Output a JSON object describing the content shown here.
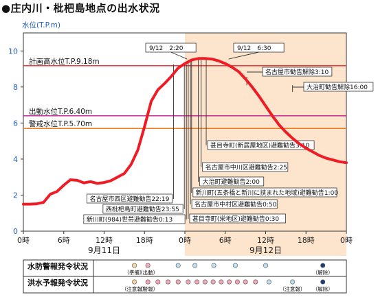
{
  "page": {
    "title": "●庄内川・枇杷島地点の出水状況"
  },
  "chart_data": {
    "type": "line",
    "ylabel": "水位(T.P.m)",
    "ylim": [
      0,
      11
    ],
    "yticks": [
      0,
      2,
      4,
      6,
      8,
      10
    ],
    "xlim": [
      0,
      48
    ],
    "xtick_labels": [
      {
        "x": 0,
        "label": "0時"
      },
      {
        "x": 6,
        "label": "6時"
      },
      {
        "x": 12,
        "label": "12時"
      },
      {
        "x": 18,
        "label": "18時"
      },
      {
        "x": 24,
        "label": "0時"
      },
      {
        "x": 30,
        "label": "6時"
      },
      {
        "x": 36,
        "label": "12時"
      },
      {
        "x": 42,
        "label": "18時"
      },
      {
        "x": 48,
        "label": "0時"
      }
    ],
    "day_labels": [
      {
        "x": 12,
        "label": "9月11日"
      },
      {
        "x": 36,
        "label": "9月12日"
      }
    ],
    "highlight_range": [
      24,
      48
    ],
    "series": [
      {
        "color": "#ee1c25",
        "points": [
          [
            0,
            1.5
          ],
          [
            1,
            1.5
          ],
          [
            2,
            1.52
          ],
          [
            3,
            1.6
          ],
          [
            4,
            2.05
          ],
          [
            5,
            2.2
          ],
          [
            6,
            2.55
          ],
          [
            7,
            2.85
          ],
          [
            8,
            2.82
          ],
          [
            9,
            2.68
          ],
          [
            10,
            2.75
          ],
          [
            11,
            2.65
          ],
          [
            12,
            2.7
          ],
          [
            13,
            2.8
          ],
          [
            14,
            3.0
          ],
          [
            15,
            3.2
          ],
          [
            16,
            3.7
          ],
          [
            17,
            4.5
          ],
          [
            18,
            5.8
          ],
          [
            19,
            7.2
          ],
          [
            20,
            7.85
          ],
          [
            21,
            8.2
          ],
          [
            22,
            8.6
          ],
          [
            23,
            9.05
          ],
          [
            24,
            9.3
          ],
          [
            25,
            9.5
          ],
          [
            26,
            9.58
          ],
          [
            27,
            9.58
          ],
          [
            28,
            9.55
          ],
          [
            29,
            9.45
          ],
          [
            30,
            9.3
          ],
          [
            31,
            9.1
          ],
          [
            32,
            8.85
          ],
          [
            33,
            8.45
          ],
          [
            34,
            8.0
          ],
          [
            35,
            7.5
          ],
          [
            36,
            6.95
          ],
          [
            37,
            6.4
          ],
          [
            38,
            5.9
          ],
          [
            39,
            5.5
          ],
          [
            40,
            5.15
          ],
          [
            41,
            4.85
          ],
          [
            42,
            4.6
          ],
          [
            43,
            4.4
          ],
          [
            44,
            4.2
          ],
          [
            45,
            4.05
          ],
          [
            46,
            3.95
          ],
          [
            47,
            3.85
          ],
          [
            48,
            3.8
          ]
        ]
      }
    ],
    "reference_lines": [
      {
        "value": 9.18,
        "label": "計画高水位T.P.9.18m",
        "color": "#e8232a"
      },
      {
        "value": 6.4,
        "label": "出動水位T.P.6.40m",
        "color": "#c8178c"
      },
      {
        "value": 5.7,
        "label": "警戒水位T.P.5.70m",
        "color": "#f07b18"
      }
    ],
    "time_markers": [
      {
        "x": 24.33,
        "label": "9/12　2:20"
      },
      {
        "x": 30.5,
        "label": "9/12　6:30"
      }
    ],
    "annotations_right": [
      {
        "x": 33.2,
        "label": "名古屋市勧告解除3:10"
      },
      {
        "x": 40.0,
        "label": "大治町勧告解除16:00"
      }
    ],
    "annotations_mid": [
      {
        "x": 27.17,
        "label": "甚目寺町(新居屋地区)避難勧告3:10"
      },
      {
        "x": 26.42,
        "label": "名古屋市中川区避難勧告2:25"
      },
      {
        "x": 26.0,
        "label": "大治町避難勧告2:00"
      },
      {
        "x": 25.0,
        "label": "新川町(五条橋と新川に挟まれた地域)避難勧告1:00"
      },
      {
        "x": 24.83,
        "label": "名古屋市中村区避難勧告0:50"
      },
      {
        "x": 24.5,
        "label": "甚目寺町(栄地区)避難勧告0:30"
      }
    ],
    "annotations_left": [
      {
        "x": 22.32,
        "label": "名古屋市西区避難勧告22:19"
      },
      {
        "x": 23.92,
        "label": "西枇杷島町避難勧告23:55"
      },
      {
        "x": 24.22,
        "label": "新川町(984)世帯避難勧告0:13"
      }
    ]
  },
  "status_rows": [
    {
      "label": "水防警報発令状況",
      "dots": [
        {
          "x": 16.5,
          "color": "#f6d7a0"
        },
        {
          "x": 18.5,
          "color": "#f1a8b8"
        },
        {
          "x": 23,
          "color": "#bfe0f3"
        },
        {
          "x": 25.5,
          "color": "#bfe0f3"
        },
        {
          "x": 28.3,
          "color": "#bfe0f3"
        },
        {
          "x": 31.5,
          "color": "#bfe0f3"
        },
        {
          "x": 36,
          "color": "#bfe0f3"
        },
        {
          "x": 44.5,
          "color": "#1c3f74"
        }
      ],
      "notes": [
        {
          "x": 16.5,
          "text": "（準備）"
        },
        {
          "x": 18.5,
          "text": "（出動）"
        },
        {
          "x": 44.5,
          "text": "（解除）"
        }
      ]
    },
    {
      "label": "洪水予報発令状況",
      "dots": [
        {
          "x": 16.5,
          "color": "#f6d7a0"
        },
        {
          "x": 18.5,
          "color": "#f1a8b8"
        },
        {
          "x": 20,
          "color": "#f1a8b8"
        },
        {
          "x": 21.5,
          "color": "#f1a8b8"
        },
        {
          "x": 23,
          "color": "#f1a8b8"
        },
        {
          "x": 24.5,
          "color": "#f1a8b8"
        },
        {
          "x": 25.8,
          "color": "#f1a8b8"
        },
        {
          "x": 27,
          "color": "#f1a8b8"
        },
        {
          "x": 28.2,
          "color": "#f1a8b8"
        },
        {
          "x": 29.4,
          "color": "#f1a8b8"
        },
        {
          "x": 30.6,
          "color": "#f1a8b8"
        },
        {
          "x": 31.8,
          "color": "#f1a8b8"
        },
        {
          "x": 33,
          "color": "#f1a8b8"
        },
        {
          "x": 34.5,
          "color": "#f1a8b8"
        },
        {
          "x": 36.5,
          "color": "#bfe0f3"
        },
        {
          "x": 40,
          "color": "#bfe0f3"
        },
        {
          "x": 44.5,
          "color": "#1c3f74"
        }
      ],
      "notes": [
        {
          "x": 16.5,
          "text": "（注意報）"
        },
        {
          "x": 18.5,
          "text": "（警報）"
        },
        {
          "x": 40,
          "text": "（注意報）"
        },
        {
          "x": 44.5,
          "text": "（解除）"
        }
      ]
    }
  ]
}
